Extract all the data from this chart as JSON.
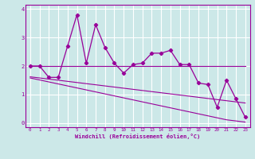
{
  "xlabel": "Windchill (Refroidissement éolien,°C)",
  "x": [
    0,
    1,
    2,
    3,
    4,
    5,
    6,
    7,
    8,
    9,
    10,
    11,
    12,
    13,
    14,
    15,
    16,
    17,
    18,
    19,
    20,
    21,
    22,
    23
  ],
  "y_main": [
    2.0,
    2.0,
    1.6,
    1.6,
    2.7,
    3.8,
    2.1,
    3.45,
    2.65,
    2.1,
    1.75,
    2.05,
    2.1,
    2.45,
    2.45,
    2.55,
    2.05,
    2.05,
    1.4,
    1.35,
    0.55,
    1.5,
    0.85,
    0.2
  ],
  "y_trend_flat": [
    2.0,
    2.0,
    2.0,
    2.0,
    2.0,
    2.0,
    2.0,
    2.0,
    2.0,
    2.0,
    2.0,
    2.0,
    2.0,
    2.0,
    2.0,
    2.0,
    2.0,
    2.0,
    2.0,
    2.0,
    2.0,
    2.0,
    2.0,
    2.0
  ],
  "y_trend_upper_diag": [
    1.62,
    1.58,
    1.54,
    1.5,
    1.46,
    1.42,
    1.38,
    1.34,
    1.3,
    1.26,
    1.22,
    1.18,
    1.14,
    1.1,
    1.06,
    1.02,
    0.98,
    0.94,
    0.9,
    0.86,
    0.82,
    0.78,
    0.74,
    0.7
  ],
  "y_trend_lower_diag": [
    1.58,
    1.51,
    1.44,
    1.37,
    1.3,
    1.23,
    1.16,
    1.09,
    1.02,
    0.95,
    0.88,
    0.81,
    0.74,
    0.67,
    0.6,
    0.53,
    0.46,
    0.39,
    0.32,
    0.25,
    0.18,
    0.11,
    0.07,
    0.03
  ],
  "line_color": "#990099",
  "bg_color": "#cce8e8",
  "grid_color": "#ffffff",
  "ylim": [
    -0.15,
    4.15
  ],
  "xlim": [
    -0.5,
    23.5
  ],
  "yticks": [
    0,
    1,
    2,
    3,
    4
  ],
  "xticks": [
    0,
    1,
    2,
    3,
    4,
    5,
    6,
    7,
    8,
    9,
    10,
    11,
    12,
    13,
    14,
    15,
    16,
    17,
    18,
    19,
    20,
    21,
    22,
    23
  ]
}
